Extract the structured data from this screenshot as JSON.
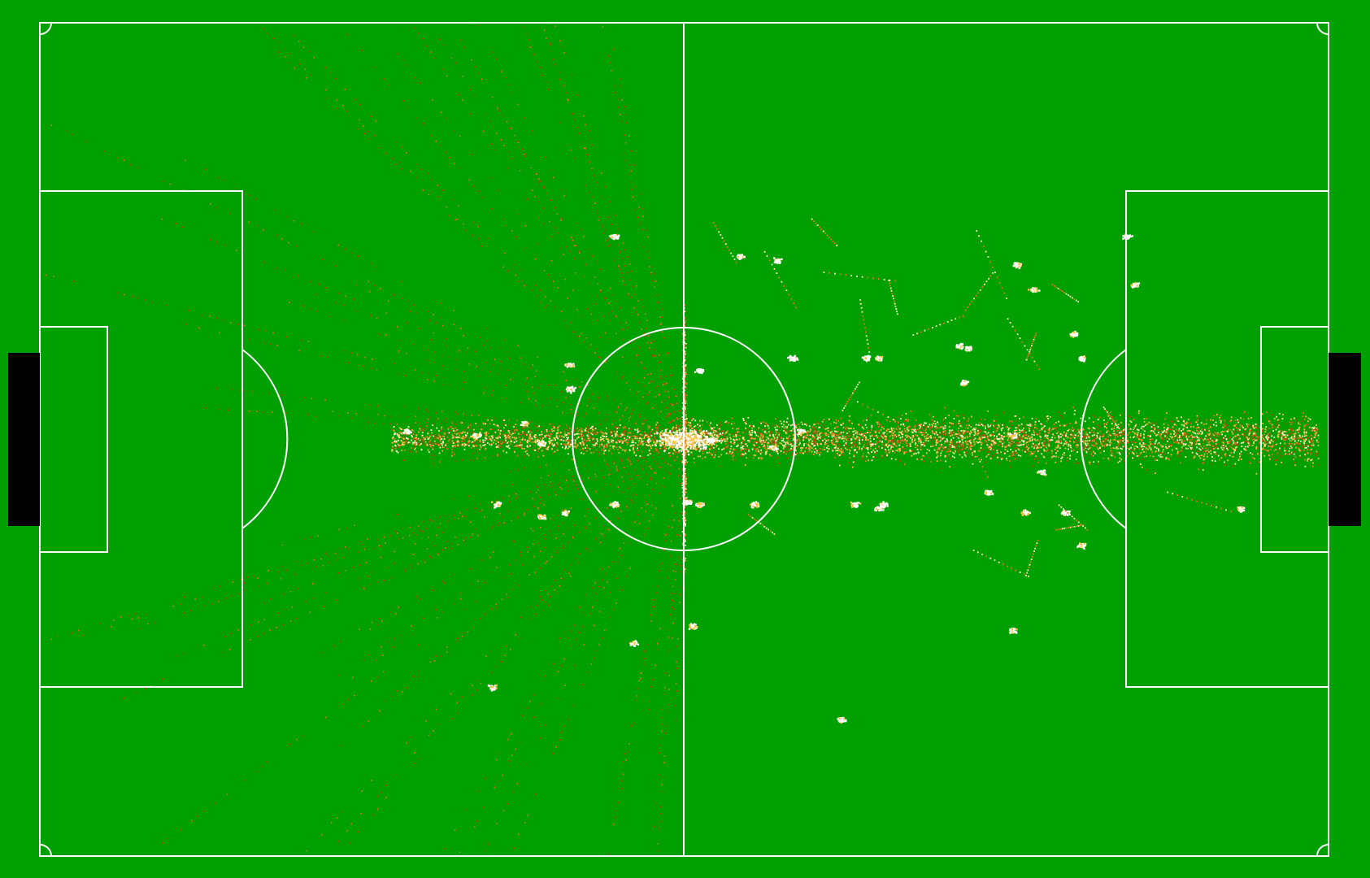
{
  "view": {
    "field_color": "#00a000",
    "line_color": "#ffffff",
    "goal_color": "#000000",
    "heat_colors": [
      "#b84a10",
      "#e07a1c",
      "#f5c242",
      "#fff6c8",
      "#ffffff"
    ]
  },
  "heatmap": {
    "description_visible": false,
    "hotspots": [
      {
        "name": "center-spot",
        "intensity": 1.0
      },
      {
        "name": "center-circle-right",
        "intensity": 0.9
      },
      {
        "name": "right-corridor",
        "intensity": 0.75
      },
      {
        "name": "left-center-cluster",
        "intensity": 0.8
      }
    ]
  }
}
